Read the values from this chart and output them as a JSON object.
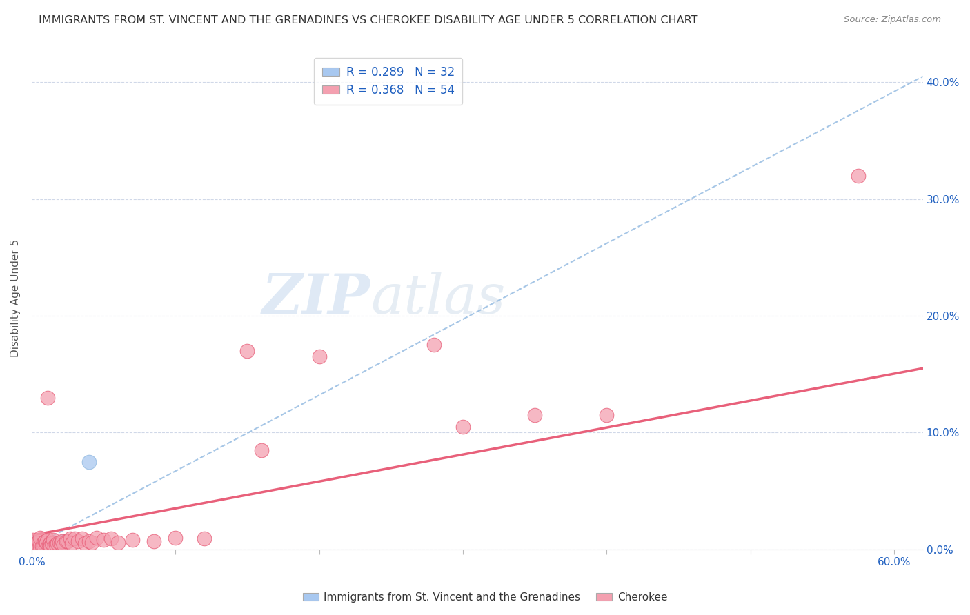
{
  "title": "IMMIGRANTS FROM ST. VINCENT AND THE GRENADINES VS CHEROKEE DISABILITY AGE UNDER 5 CORRELATION CHART",
  "source": "Source: ZipAtlas.com",
  "ylabel": "Disability Age Under 5",
  "xlim": [
    0,
    0.62
  ],
  "ylim": [
    0,
    0.43
  ],
  "xticks": [
    0.0,
    0.1,
    0.2,
    0.3,
    0.4,
    0.5,
    0.6
  ],
  "xticklabels": [
    "0.0%",
    "",
    "",
    "",
    "",
    "",
    "60.0%"
  ],
  "yticks": [
    0.0,
    0.1,
    0.2,
    0.3,
    0.4
  ],
  "yticklabels_right": [
    "0.0%",
    "10.0%",
    "20.0%",
    "30.0%",
    "40.0%"
  ],
  "blue_R": 0.289,
  "blue_N": 32,
  "pink_R": 0.368,
  "pink_N": 54,
  "blue_color": "#a8c8f0",
  "pink_color": "#f4a0b0",
  "blue_line_color": "#90b8e0",
  "pink_line_color": "#e8607a",
  "watermark_zip": "ZIP",
  "watermark_atlas": "atlas",
  "blue_points_x": [
    0.001,
    0.001,
    0.001,
    0.002,
    0.002,
    0.002,
    0.002,
    0.003,
    0.003,
    0.003,
    0.003,
    0.004,
    0.004,
    0.004,
    0.004,
    0.005,
    0.005,
    0.005,
    0.006,
    0.006,
    0.007,
    0.007,
    0.008,
    0.008,
    0.009,
    0.01,
    0.01,
    0.011,
    0.012,
    0.014,
    0.022,
    0.04
  ],
  "blue_points_y": [
    0.005,
    0.003,
    0.002,
    0.003,
    0.002,
    0.002,
    0.001,
    0.003,
    0.002,
    0.002,
    0.002,
    0.003,
    0.002,
    0.002,
    0.001,
    0.004,
    0.002,
    0.002,
    0.003,
    0.002,
    0.003,
    0.002,
    0.003,
    0.002,
    0.003,
    0.004,
    0.003,
    0.003,
    0.003,
    0.004,
    0.007,
    0.075
  ],
  "pink_points_x": [
    0.001,
    0.002,
    0.003,
    0.004,
    0.004,
    0.005,
    0.005,
    0.006,
    0.006,
    0.007,
    0.008,
    0.008,
    0.009,
    0.01,
    0.011,
    0.011,
    0.012,
    0.013,
    0.013,
    0.014,
    0.015,
    0.016,
    0.017,
    0.018,
    0.019,
    0.02,
    0.021,
    0.022,
    0.024,
    0.025,
    0.027,
    0.028,
    0.03,
    0.032,
    0.035,
    0.037,
    0.04,
    0.042,
    0.045,
    0.05,
    0.055,
    0.06,
    0.07,
    0.085,
    0.1,
    0.12,
    0.15,
    0.16,
    0.2,
    0.28,
    0.3,
    0.35,
    0.4,
    0.575
  ],
  "pink_points_y": [
    0.008,
    0.003,
    0.005,
    0.002,
    0.005,
    0.002,
    0.007,
    0.003,
    0.01,
    0.003,
    0.006,
    0.003,
    0.007,
    0.006,
    0.008,
    0.13,
    0.004,
    0.006,
    0.003,
    0.005,
    0.008,
    0.003,
    0.004,
    0.005,
    0.006,
    0.005,
    0.007,
    0.004,
    0.007,
    0.007,
    0.009,
    0.005,
    0.009,
    0.007,
    0.009,
    0.005,
    0.007,
    0.006,
    0.01,
    0.008,
    0.009,
    0.006,
    0.008,
    0.007,
    0.01,
    0.009,
    0.17,
    0.085,
    0.165,
    0.175,
    0.105,
    0.115,
    0.115,
    0.32
  ],
  "blue_trendline_x0": 0.0,
  "blue_trendline_y0": 0.002,
  "blue_trendline_x1": 0.62,
  "blue_trendline_y1": 0.405,
  "pink_trendline_x0": 0.0,
  "pink_trendline_y0": 0.012,
  "pink_trendline_x1": 0.62,
  "pink_trendline_y1": 0.155
}
